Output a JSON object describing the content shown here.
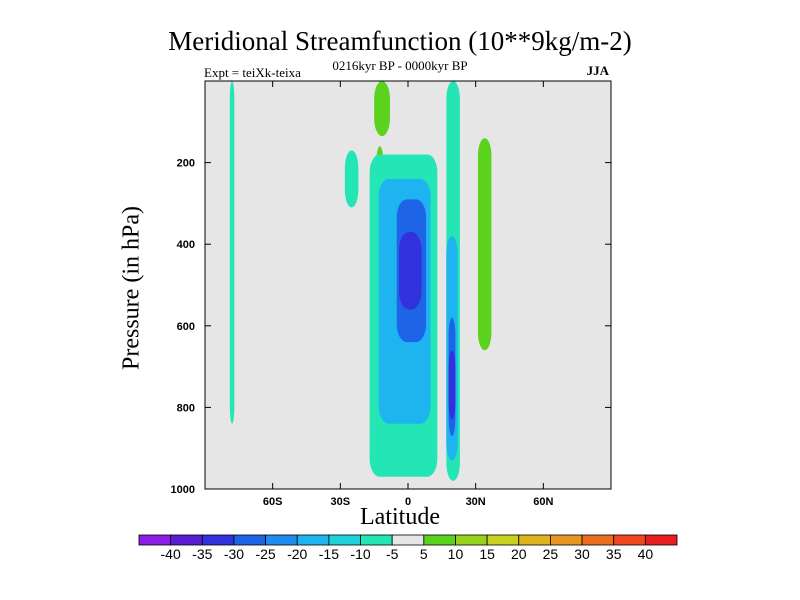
{
  "header": {
    "title": "Meridional Streamfunction (10**9kg/m-2)",
    "subtitle": "0216kyr BP - 0000kyr BP",
    "left_note": "Expt = teiXk-teixa",
    "right_note": "JJA"
  },
  "chart_data": {
    "type": "heatmap",
    "title": "Meridional Streamfunction (10**9kg/m-2)",
    "xlabel": "Latitude",
    "ylabel": "Pressure (in hPa)",
    "xlim": [
      -90,
      90
    ],
    "ylim": [
      1000,
      0
    ],
    "x_ticks": [
      {
        "value": -60,
        "label": "60S"
      },
      {
        "value": -30,
        "label": "30S"
      },
      {
        "value": 0,
        "label": "0"
      },
      {
        "value": 30,
        "label": "30N"
      },
      {
        "value": 60,
        "label": "60N"
      }
    ],
    "y_ticks": [
      {
        "value": 200,
        "label": "200"
      },
      {
        "value": 400,
        "label": "400"
      },
      {
        "value": 600,
        "label": "600"
      },
      {
        "value": 800,
        "label": "800"
      },
      {
        "value": 1000,
        "label": "1000"
      }
    ],
    "background_color": "#e6e6e6",
    "colorbar": {
      "labels": [
        "-40",
        "-35",
        "-30",
        "-25",
        "-20",
        "-15",
        "-10",
        "-5",
        "5",
        "10",
        "15",
        "20",
        "25",
        "30",
        "35",
        "40"
      ],
      "colors": [
        "#8a1ee6",
        "#5a1ed2",
        "#3232dc",
        "#1e64e6",
        "#1e8cf0",
        "#1eb4f0",
        "#1ed2dc",
        "#23e6b4",
        "#e6e6e6",
        "#5ad21e",
        "#96d21e",
        "#c8d21e",
        "#dcb41e",
        "#e6961e",
        "#eb6e1e",
        "#f0461e",
        "#e61e1e"
      ]
    },
    "regions": [
      {
        "feature": "high-latitude southern column",
        "value": -7,
        "lat": [
          -79,
          -77
        ],
        "p": [
          0,
          840
        ]
      },
      {
        "feature": "upper tropospheric northern positive lobe",
        "value": 7,
        "lat": [
          31,
          37
        ],
        "p": [
          140,
          660
        ]
      },
      {
        "feature": "upper small positive cell",
        "value": 7,
        "lat": [
          -15,
          -8
        ],
        "p": [
          0,
          135
        ]
      },
      {
        "feature": "small positive cell",
        "value": 7,
        "lat": [
          -14,
          -11
        ],
        "p": [
          160,
          230
        ]
      },
      {
        "feature": "small negative cell",
        "value": -7,
        "lat": [
          -28,
          -22
        ],
        "p": [
          170,
          310
        ]
      },
      {
        "feature": "main negative cell envelope",
        "value": -10,
        "lat": [
          -17,
          13
        ],
        "p": [
          180,
          970
        ]
      },
      {
        "feature": "main negative cell inner",
        "value": -20,
        "lat": [
          -13,
          10
        ],
        "p": [
          240,
          840
        ]
      },
      {
        "feature": "main negative cell core",
        "value": -30,
        "lat": [
          -5,
          8
        ],
        "p": [
          290,
          640
        ]
      },
      {
        "feature": "main negative cell max",
        "value": -35,
        "lat": [
          -4,
          6
        ],
        "p": [
          370,
          560
        ]
      },
      {
        "feature": "near-equatorial column",
        "value": -7,
        "lat": [
          17,
          23
        ],
        "p": [
          0,
          980
        ]
      },
      {
        "feature": "near-equatorial inner",
        "value": -20,
        "lat": [
          17,
          22
        ],
        "p": [
          380,
          930
        ]
      },
      {
        "feature": "near-equatorial core",
        "value": -30,
        "lat": [
          18,
          21
        ],
        "p": [
          580,
          870
        ]
      },
      {
        "feature": "near-equatorial max",
        "value": -35,
        "lat": [
          18,
          21
        ],
        "p": [
          660,
          830
        ]
      }
    ]
  }
}
